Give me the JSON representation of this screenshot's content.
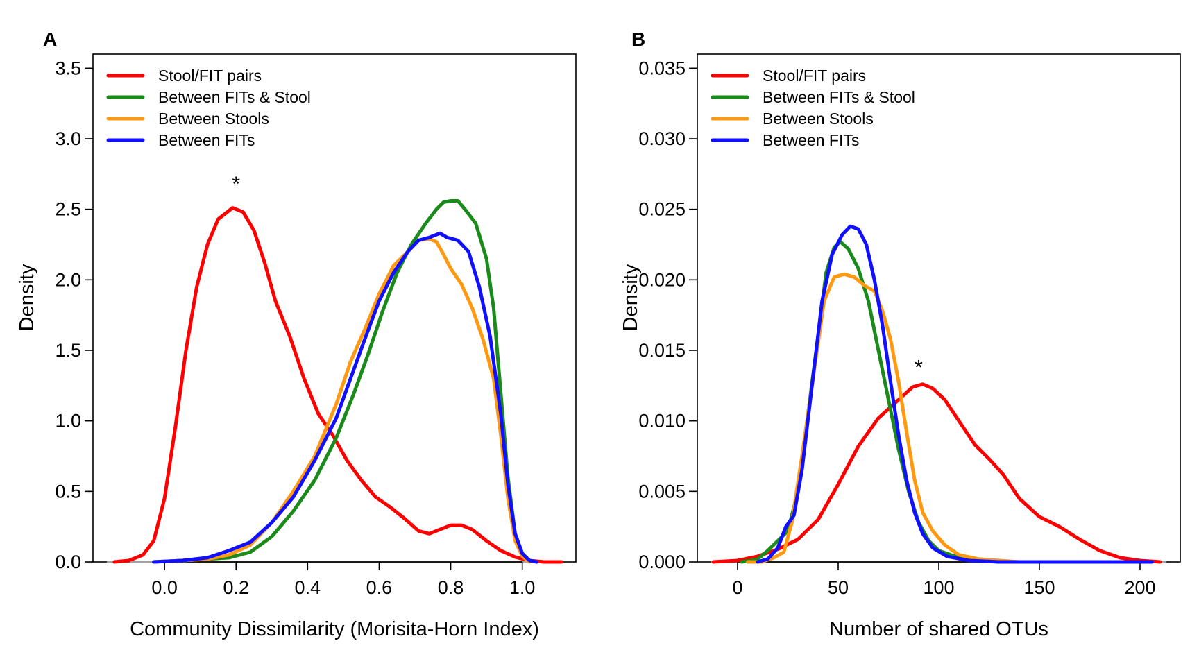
{
  "chart_data": [
    {
      "type": "line",
      "panel": "A",
      "xlabel": "Community Dissimilarity (Morisita-Horn Index)",
      "ylabel": "Density",
      "xlim": [
        -0.2,
        1.15
      ],
      "ylim": [
        0,
        3.6
      ],
      "x_ticks": [
        "0.0",
        "0.2",
        "0.4",
        "0.6",
        "0.8",
        "1.0"
      ],
      "y_ticks": [
        "0.0",
        "0.5",
        "1.0",
        "1.5",
        "2.0",
        "2.5",
        "3.0",
        "3.5"
      ],
      "legend_position": "top-left",
      "annotation": {
        "text": "*",
        "x": 0.2,
        "y": 2.7
      },
      "series": [
        {
          "name": "Stool/FIT pairs",
          "color": "#ff0000",
          "points": [
            [
              -0.14,
              0.0
            ],
            [
              -0.1,
              0.01
            ],
            [
              -0.06,
              0.05
            ],
            [
              -0.03,
              0.15
            ],
            [
              0.0,
              0.45
            ],
            [
              0.03,
              0.95
            ],
            [
              0.06,
              1.5
            ],
            [
              0.09,
              1.95
            ],
            [
              0.12,
              2.25
            ],
            [
              0.15,
              2.43
            ],
            [
              0.19,
              2.51
            ],
            [
              0.22,
              2.48
            ],
            [
              0.25,
              2.35
            ],
            [
              0.28,
              2.12
            ],
            [
              0.31,
              1.85
            ],
            [
              0.35,
              1.6
            ],
            [
              0.39,
              1.3
            ],
            [
              0.43,
              1.05
            ],
            [
              0.47,
              0.9
            ],
            [
              0.51,
              0.72
            ],
            [
              0.55,
              0.58
            ],
            [
              0.59,
              0.46
            ],
            [
              0.63,
              0.39
            ],
            [
              0.67,
              0.31
            ],
            [
              0.71,
              0.22
            ],
            [
              0.74,
              0.2
            ],
            [
              0.77,
              0.23
            ],
            [
              0.8,
              0.26
            ],
            [
              0.83,
              0.26
            ],
            [
              0.86,
              0.23
            ],
            [
              0.9,
              0.15
            ],
            [
              0.94,
              0.08
            ],
            [
              0.98,
              0.035
            ],
            [
              1.02,
              0.01
            ],
            [
              1.06,
              0.0
            ],
            [
              1.11,
              0.0
            ]
          ]
        },
        {
          "name": "Between FITs & Stool",
          "color": "#1a8a1a",
          "points": [
            [
              -0.03,
              0.0
            ],
            [
              0.05,
              0.01
            ],
            [
              0.12,
              0.02
            ],
            [
              0.18,
              0.03
            ],
            [
              0.24,
              0.07
            ],
            [
              0.3,
              0.18
            ],
            [
              0.36,
              0.36
            ],
            [
              0.42,
              0.58
            ],
            [
              0.48,
              0.88
            ],
            [
              0.53,
              1.2
            ],
            [
              0.57,
              1.48
            ],
            [
              0.61,
              1.78
            ],
            [
              0.65,
              2.05
            ],
            [
              0.69,
              2.25
            ],
            [
              0.73,
              2.4
            ],
            [
              0.76,
              2.5
            ],
            [
              0.78,
              2.55
            ],
            [
              0.8,
              2.56
            ],
            [
              0.82,
              2.56
            ],
            [
              0.84,
              2.5
            ],
            [
              0.87,
              2.4
            ],
            [
              0.9,
              2.15
            ],
            [
              0.92,
              1.8
            ],
            [
              0.94,
              1.2
            ],
            [
              0.96,
              0.6
            ],
            [
              0.98,
              0.2
            ],
            [
              1.0,
              0.06
            ],
            [
              1.02,
              0.01
            ],
            [
              1.04,
              0.0
            ]
          ]
        },
        {
          "name": "Between Stools",
          "color": "#ff9912",
          "points": [
            [
              -0.03,
              0.0
            ],
            [
              0.05,
              0.01
            ],
            [
              0.12,
              0.02
            ],
            [
              0.18,
              0.05
            ],
            [
              0.24,
              0.12
            ],
            [
              0.3,
              0.28
            ],
            [
              0.36,
              0.5
            ],
            [
              0.42,
              0.75
            ],
            [
              0.48,
              1.12
            ],
            [
              0.52,
              1.42
            ],
            [
              0.56,
              1.65
            ],
            [
              0.6,
              1.9
            ],
            [
              0.64,
              2.1
            ],
            [
              0.68,
              2.2
            ],
            [
              0.71,
              2.28
            ],
            [
              0.74,
              2.29
            ],
            [
              0.76,
              2.27
            ],
            [
              0.78,
              2.18
            ],
            [
              0.8,
              2.08
            ],
            [
              0.83,
              1.97
            ],
            [
              0.86,
              1.8
            ],
            [
              0.89,
              1.58
            ],
            [
              0.92,
              1.3
            ],
            [
              0.94,
              0.9
            ],
            [
              0.96,
              0.45
            ],
            [
              0.98,
              0.15
            ],
            [
              1.0,
              0.04
            ],
            [
              1.02,
              0.0
            ]
          ]
        },
        {
          "name": "Between FITs",
          "color": "#1010ff",
          "points": [
            [
              -0.03,
              0.0
            ],
            [
              0.05,
              0.01
            ],
            [
              0.12,
              0.03
            ],
            [
              0.18,
              0.08
            ],
            [
              0.24,
              0.14
            ],
            [
              0.3,
              0.28
            ],
            [
              0.36,
              0.46
            ],
            [
              0.42,
              0.72
            ],
            [
              0.48,
              1.02
            ],
            [
              0.52,
              1.3
            ],
            [
              0.56,
              1.58
            ],
            [
              0.6,
              1.85
            ],
            [
              0.64,
              2.05
            ],
            [
              0.68,
              2.2
            ],
            [
              0.71,
              2.28
            ],
            [
              0.74,
              2.3
            ],
            [
              0.77,
              2.33
            ],
            [
              0.79,
              2.3
            ],
            [
              0.82,
              2.28
            ],
            [
              0.85,
              2.2
            ],
            [
              0.88,
              1.95
            ],
            [
              0.91,
              1.6
            ],
            [
              0.94,
              1.05
            ],
            [
              0.96,
              0.55
            ],
            [
              0.98,
              0.2
            ],
            [
              1.0,
              0.06
            ],
            [
              1.02,
              0.01
            ],
            [
              1.04,
              0.0
            ]
          ]
        }
      ]
    },
    {
      "type": "line",
      "panel": "B",
      "xlabel": "Number of shared OTUs",
      "ylabel": "Density",
      "xlim": [
        -20,
        220
      ],
      "ylim": [
        0,
        0.036
      ],
      "x_ticks": [
        "0",
        "50",
        "100",
        "150",
        "200"
      ],
      "y_ticks": [
        "0.000",
        "0.005",
        "0.010",
        "0.015",
        "0.020",
        "0.025",
        "0.030",
        "0.035"
      ],
      "legend_position": "top-left",
      "annotation": {
        "text": "*",
        "x": 90,
        "y": 0.014
      },
      "series": [
        {
          "name": "Stool/FIT pairs",
          "color": "#ff0000",
          "points": [
            [
              -12,
              0.0
            ],
            [
              0,
              0.0001
            ],
            [
              10,
              0.0004
            ],
            [
              20,
              0.0009
            ],
            [
              30,
              0.0016
            ],
            [
              40,
              0.003
            ],
            [
              50,
              0.0055
            ],
            [
              60,
              0.0082
            ],
            [
              70,
              0.0102
            ],
            [
              80,
              0.0115
            ],
            [
              87,
              0.0124
            ],
            [
              92,
              0.0126
            ],
            [
              97,
              0.0123
            ],
            [
              103,
              0.0115
            ],
            [
              110,
              0.01
            ],
            [
              118,
              0.0083
            ],
            [
              125,
              0.0073
            ],
            [
              132,
              0.0062
            ],
            [
              140,
              0.0045
            ],
            [
              150,
              0.0032
            ],
            [
              160,
              0.0025
            ],
            [
              170,
              0.0016
            ],
            [
              180,
              0.0008
            ],
            [
              190,
              0.0003
            ],
            [
              200,
              0.0001
            ],
            [
              210,
              0.0
            ]
          ]
        },
        {
          "name": "Between FITs & Stool",
          "color": "#1a8a1a",
          "points": [
            [
              2,
              0.0
            ],
            [
              10,
              0.0002
            ],
            [
              15,
              0.0008
            ],
            [
              20,
              0.0015
            ],
            [
              25,
              0.0022
            ],
            [
              30,
              0.005
            ],
            [
              35,
              0.0105
            ],
            [
              40,
              0.016
            ],
            [
              44,
              0.0205
            ],
            [
              48,
              0.0223
            ],
            [
              51,
              0.0227
            ],
            [
              55,
              0.0222
            ],
            [
              60,
              0.0208
            ],
            [
              65,
              0.0185
            ],
            [
              70,
              0.015
            ],
            [
              75,
              0.0115
            ],
            [
              80,
              0.008
            ],
            [
              85,
              0.005
            ],
            [
              90,
              0.0028
            ],
            [
              95,
              0.0015
            ],
            [
              100,
              0.0008
            ],
            [
              110,
              0.0003
            ],
            [
              120,
              0.0001
            ],
            [
              130,
              0.0
            ],
            [
              160,
              0.0
            ],
            [
              190,
              0.0
            ]
          ]
        },
        {
          "name": "Between Stools",
          "color": "#ff9912",
          "points": [
            [
              5,
              0.0
            ],
            [
              12,
              0.0
            ],
            [
              18,
              0.0003
            ],
            [
              23,
              0.0007
            ],
            [
              27,
              0.0028
            ],
            [
              32,
              0.0075
            ],
            [
              38,
              0.0135
            ],
            [
              43,
              0.0185
            ],
            [
              48,
              0.0202
            ],
            [
              53,
              0.0204
            ],
            [
              58,
              0.0202
            ],
            [
              63,
              0.0196
            ],
            [
              68,
              0.0192
            ],
            [
              72,
              0.0178
            ],
            [
              76,
              0.0158
            ],
            [
              80,
              0.0128
            ],
            [
              84,
              0.0092
            ],
            [
              88,
              0.0058
            ],
            [
              92,
              0.0035
            ],
            [
              97,
              0.0022
            ],
            [
              103,
              0.0012
            ],
            [
              110,
              0.0005
            ],
            [
              120,
              0.0002
            ],
            [
              140,
              0.0
            ],
            [
              180,
              0.0
            ],
            [
              204,
              0.0
            ]
          ]
        },
        {
          "name": "Between FITs",
          "color": "#1010ff",
          "points": [
            [
              10,
              0.0
            ],
            [
              15,
              0.0002
            ],
            [
              20,
              0.001
            ],
            [
              24,
              0.0025
            ],
            [
              28,
              0.0033
            ],
            [
              32,
              0.0065
            ],
            [
              37,
              0.0125
            ],
            [
              42,
              0.0185
            ],
            [
              47,
              0.0218
            ],
            [
              52,
              0.0232
            ],
            [
              56,
              0.0238
            ],
            [
              60,
              0.0236
            ],
            [
              64,
              0.0225
            ],
            [
              68,
              0.02
            ],
            [
              72,
              0.0168
            ],
            [
              76,
              0.0128
            ],
            [
              80,
              0.009
            ],
            [
              84,
              0.0058
            ],
            [
              88,
              0.0035
            ],
            [
              92,
              0.002
            ],
            [
              97,
              0.001
            ],
            [
              104,
              0.0004
            ],
            [
              115,
              0.0001
            ],
            [
              130,
              0.0
            ],
            [
              170,
              0.0
            ],
            [
              206,
              0.0
            ]
          ]
        }
      ]
    }
  ]
}
